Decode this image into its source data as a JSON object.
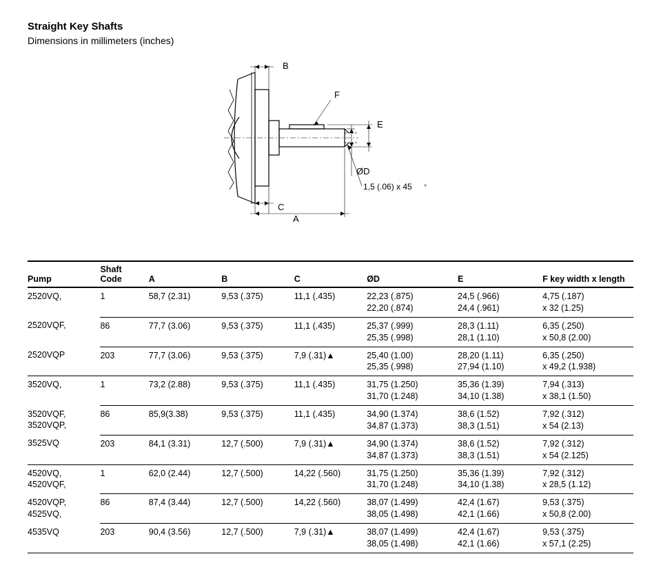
{
  "header": {
    "title": "Straight Key Shafts",
    "subtitle": "Dimensions in millimeters (inches)"
  },
  "diagram": {
    "labels": {
      "A": "A",
      "B": "B",
      "C": "C",
      "D": "ØD",
      "E": "E",
      "F": "F"
    },
    "chamfer_note": "1,5 (.06) x 45",
    "deg_symbol": "°",
    "stroke_color": "#000000",
    "stroke_width": 1.2
  },
  "table": {
    "columns": {
      "pump": "Pump",
      "code": "Shaft Code",
      "A": "A",
      "B": "B",
      "C": "C",
      "D": "ØD",
      "E": "E",
      "F": "F key width x length"
    },
    "rows": [
      {
        "pump": "2520VQ,",
        "code": "1",
        "A": "58,7 (2.31)",
        "B": "9,53 (.375)",
        "C": "11,1 (.435)",
        "D": "22,23 (.875)\n22,20 (.874)",
        "E": "24,5 (.966)\n24,4 (.961)",
        "F": "4,75 (.187)\nx 32 (1.25)",
        "sub_end": true,
        "pump_no_bottom": true
      },
      {
        "pump": "2520VQF,",
        "code": "86",
        "A": "77,7 (3.06)",
        "B": "9,53 (.375)",
        "C": "11,1 (.435)",
        "D": "25,37 (.999)\n25,35 (.998)",
        "E": "28,3 (1.11)\n28,1 (1.10)",
        "F": "6,35 (.250)\nx 50,8 (2.00)",
        "sub_end": true,
        "pump_no_bottom": true
      },
      {
        "pump": "2520VQP",
        "code": "203",
        "A": "77,7 (3.06)",
        "B": "9,53 (.375)",
        "C": "7,9 (.31)▲",
        "D": "25,40 (1.00)\n25,35 (.998)",
        "E": "28,20 (1.11)\n27,94 (1.10)",
        "F": "6,35 (.250)\nx 49,2 (1.938)",
        "group_end": true
      },
      {
        "pump": "3520VQ,",
        "code": "1",
        "A": "73,2 (2.88)",
        "B": "9,53 (.375)",
        "C": "11,1 (.435)",
        "D": "31,75 (1.250)\n31,70 (1.248)",
        "E": "35,36 (1.39)\n34,10 (1.38)",
        "F": "7,94 (.313)\nx 38,1 (1.50)",
        "sub_end": true,
        "pump_no_bottom": true
      },
      {
        "pump": "3520VQF,\n3520VQP,",
        "code": "86",
        "A": "85,9(3.38)",
        "B": "9,53 (.375)",
        "C": "11,1 (.435)",
        "D": "34,90 (1.374)\n34,87 (1.373)",
        "E": "38,6 (1.52)\n38,3 (1.51)",
        "F": "7,92 (.312)\nx 54 (2.13)",
        "sub_end": true,
        "pump_no_bottom": true
      },
      {
        "pump": "3525VQ",
        "code": "203",
        "A": "84,1 (3.31)",
        "B": "12,7 (.500)",
        "C": "7,9 (.31)▲",
        "D": "34,90 (1.374)\n34,87 (1.373)",
        "E": "38,6 (1.52)\n38,3 (1.51)",
        "F": "7,92 (.312)\nx 54 (2.125)",
        "group_end": true
      },
      {
        "pump": "4520VQ,\n4520VQF,",
        "code": "1",
        "A": "62,0 (2.44)",
        "B": "12,7 (.500)",
        "C": "14,22 (.560)",
        "D": "31,75 (1.250)\n31,70 (1.248)",
        "E": "35,36 (1.39)\n34,10 (1.38)",
        "F": "7,92 (.312)\nx 28,5 (1.12)",
        "sub_end": true,
        "pump_no_bottom": true
      },
      {
        "pump": "4520VQP,\n4525VQ,",
        "code": "86",
        "A": "87,4 (3.44)",
        "B": "12,7 (.500)",
        "C": "14,22 (.560)",
        "D": "38,07 (1.499)\n38,05 (1.498)",
        "E": "42,4 (1.67)\n42,1 (1.66)",
        "F": "9,53 (.375)\nx 50,8 (2.00)",
        "sub_end": true,
        "pump_no_bottom": true
      },
      {
        "pump": "4535VQ",
        "code": "203",
        "A": "90,4 (3.56)",
        "B": "12,7 (.500)",
        "C": "7,9 (.31)▲",
        "D": "38,07 (1.499)\n38,05 (1.498)",
        "E": "42,4 (1.67)\n42,1 (1.66)",
        "F": "9,53 (.375)\nx 57,1 (2.25)",
        "group_end": true
      }
    ]
  }
}
